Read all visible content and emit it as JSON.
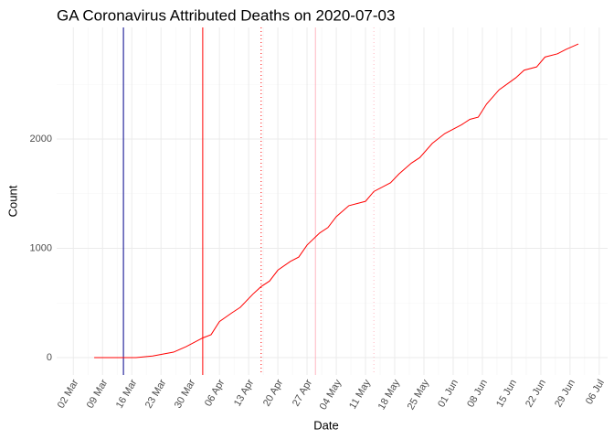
{
  "chart_data": {
    "type": "line",
    "title": "GA Coronavirus Attributed Deaths on 2020-07-03",
    "x_label": "Date",
    "y_label": "Count",
    "x": [
      "2020-03-07",
      "2020-03-17",
      "2020-03-21",
      "2020-03-26",
      "2020-03-29",
      "2020-04-02",
      "2020-04-04",
      "2020-04-06",
      "2020-04-09",
      "2020-04-11",
      "2020-04-14",
      "2020-04-16",
      "2020-04-18",
      "2020-04-20",
      "2020-04-23",
      "2020-04-25",
      "2020-04-27",
      "2020-04-30",
      "2020-05-02",
      "2020-05-04",
      "2020-05-07",
      "2020-05-11",
      "2020-05-13",
      "2020-05-17",
      "2020-05-19",
      "2020-05-22",
      "2020-05-24",
      "2020-05-27",
      "2020-05-30",
      "2020-06-03",
      "2020-06-05",
      "2020-06-07",
      "2020-06-09",
      "2020-06-12",
      "2020-06-16",
      "2020-06-18",
      "2020-06-21",
      "2020-06-23",
      "2020-06-26",
      "2020-06-28",
      "2020-07-01"
    ],
    "series": [
      {
        "name": "Count",
        "color": "#ff0000",
        "values": [
          0,
          0,
          15,
          50,
          100,
          180,
          210,
          330,
          410,
          460,
          580,
          650,
          700,
          800,
          880,
          920,
          1030,
          1140,
          1190,
          1290,
          1390,
          1430,
          1520,
          1600,
          1680,
          1780,
          1830,
          1960,
          2050,
          2130,
          2180,
          2200,
          2320,
          2450,
          2560,
          2630,
          2660,
          2750,
          2780,
          2820,
          2870
        ]
      }
    ],
    "xlim": [
      "2020-02-27",
      "2020-07-08"
    ],
    "xticks": [
      {
        "value": "2020-03-02",
        "label": "02 Mar"
      },
      {
        "value": "2020-03-09",
        "label": "09 Mar"
      },
      {
        "value": "2020-03-16",
        "label": "16 Mar"
      },
      {
        "value": "2020-03-23",
        "label": "23 Mar"
      },
      {
        "value": "2020-03-30",
        "label": "30 Mar"
      },
      {
        "value": "2020-04-06",
        "label": "06 Apr"
      },
      {
        "value": "2020-04-13",
        "label": "13 Apr"
      },
      {
        "value": "2020-04-20",
        "label": "20 Apr"
      },
      {
        "value": "2020-04-27",
        "label": "27 Apr"
      },
      {
        "value": "2020-05-04",
        "label": "04 May"
      },
      {
        "value": "2020-05-11",
        "label": "11 May"
      },
      {
        "value": "2020-05-18",
        "label": "18 May"
      },
      {
        "value": "2020-05-25",
        "label": "25 May"
      },
      {
        "value": "2020-06-01",
        "label": "01 Jun"
      },
      {
        "value": "2020-06-08",
        "label": "08 Jun"
      },
      {
        "value": "2020-06-15",
        "label": "15 Jun"
      },
      {
        "value": "2020-06-22",
        "label": "22 Jun"
      },
      {
        "value": "2020-06-29",
        "label": "29 Jun"
      },
      {
        "value": "2020-07-06",
        "label": "06 Jul"
      }
    ],
    "ylim": [
      -159,
      3021
    ],
    "yticks": [
      0,
      1000,
      2000
    ],
    "grid": true,
    "vlines": [
      {
        "x": "2020-03-14",
        "color": "#00008b",
        "style": "solid"
      },
      {
        "x": "2020-04-02",
        "color": "#ff0000",
        "style": "solid"
      },
      {
        "x": "2020-04-16",
        "color": "#ff0000",
        "style": "dotted"
      },
      {
        "x": "2020-04-29",
        "color": "#ffb6c1",
        "style": "solid"
      },
      {
        "x": "2020-05-13",
        "color": "#ffb6c1",
        "style": "dotted"
      }
    ]
  }
}
